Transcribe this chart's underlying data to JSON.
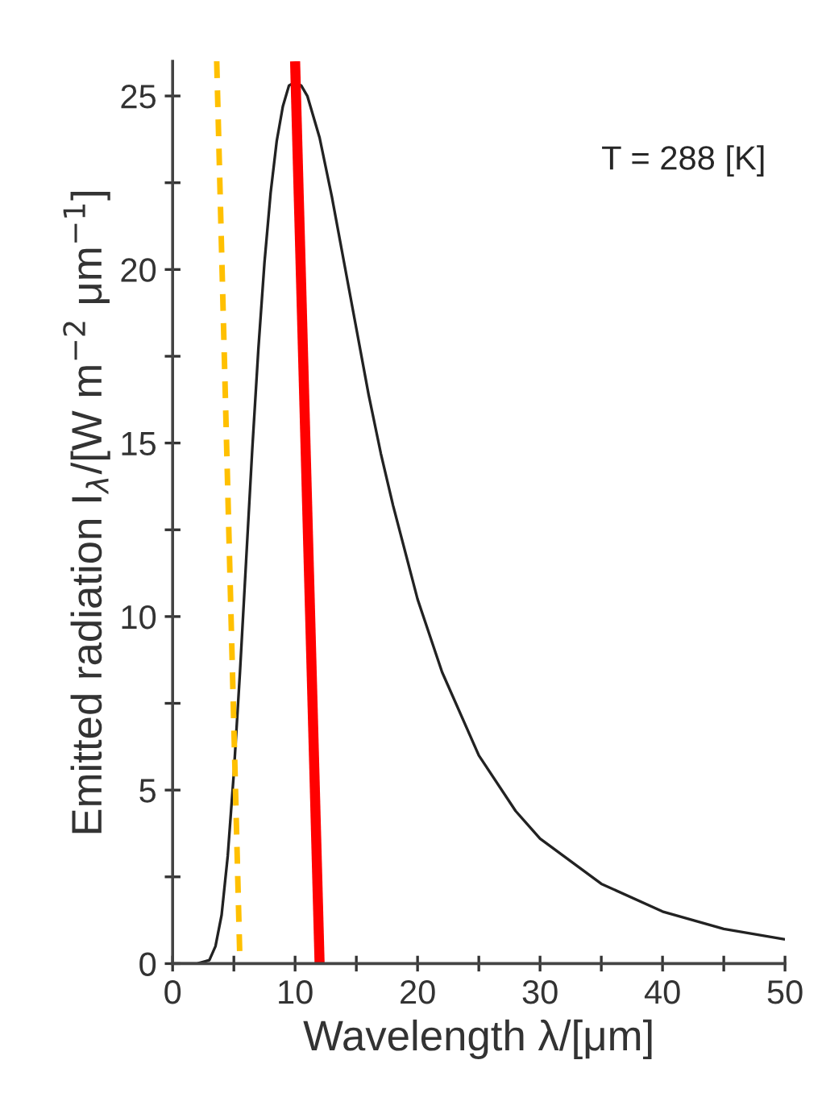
{
  "chart_data": {
    "type": "line",
    "xlabel": "Wavelength λ/[μm]",
    "ylabel": "Emitted radiation I$_{λ}$/[W m$^{−2}$ μm$^{−1}$]",
    "annotations": [
      "T = 288 [K]"
    ],
    "series": [
      {
        "color": "#222222",
        "line_style": "solid",
        "x": [
          0,
          2,
          3,
          3.5,
          4,
          4.5,
          5,
          5.5,
          6,
          6.5,
          7,
          7.5,
          8,
          8.5,
          9,
          9.5,
          10,
          10.5,
          11,
          12,
          13,
          14,
          15,
          16,
          17,
          18,
          20,
          22,
          25,
          28,
          30,
          35,
          40,
          45,
          50
        ],
        "values": [
          0,
          0,
          0.1,
          0.5,
          1.4,
          3.1,
          5.5,
          8.4,
          11.6,
          14.8,
          17.7,
          20.2,
          22.2,
          23.7,
          24.7,
          25.3,
          25.4,
          25.3,
          25.0,
          23.8,
          22.1,
          20.2,
          18.3,
          16.4,
          14.7,
          13.2,
          10.5,
          8.4,
          6.0,
          4.4,
          3.6,
          2.3,
          1.5,
          1.0,
          0.7
        ]
      },
      {
        "color": "#ff0000",
        "line_style": "solid",
        "x": [
          10.0,
          12.0
        ],
        "values": [
          26,
          0
        ]
      },
      {
        "color": "#ffc000",
        "line_style": "dashed",
        "x": [
          3.6,
          5.5
        ],
        "values": [
          26,
          0
        ]
      }
    ],
    "xlim": [
      0,
      50
    ],
    "ylim": [
      0,
      26
    ],
    "xticks": [
      0,
      {
        "value": 5,
        "label": null
      },
      10,
      {
        "value": 15,
        "label": null
      },
      20,
      {
        "value": 25,
        "label": null
      },
      30,
      {
        "value": 35,
        "label": null
      },
      40,
      {
        "value": 45,
        "label": null
      },
      50
    ],
    "yticks": [
      0,
      {
        "value": 2.5,
        "label": null
      },
      5,
      {
        "value": 7.5,
        "label": null
      },
      10,
      {
        "value": 12.5,
        "label": null
      },
      15,
      {
        "value": 17.5,
        "label": null
      },
      20,
      {
        "value": 22.5,
        "label": null
      },
      25
    ],
    "grid": false,
    "legend": false
  }
}
